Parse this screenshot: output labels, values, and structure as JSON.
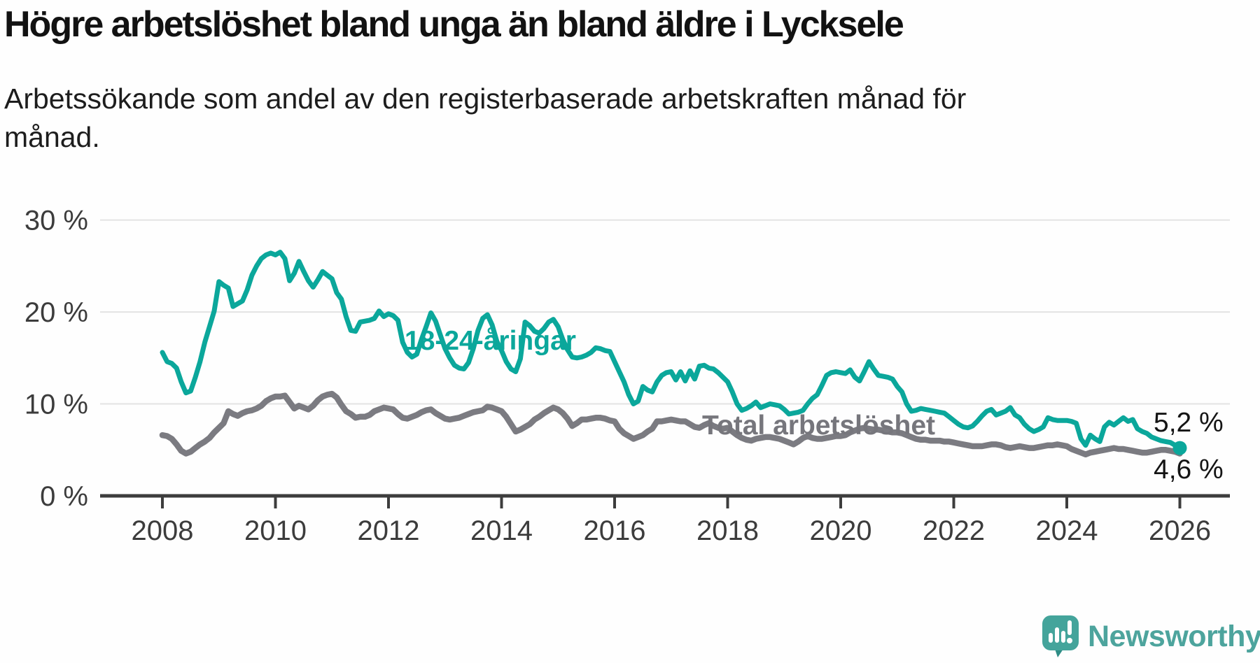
{
  "header": {
    "title": "Högre arbetslöshet bland unga än bland äldre i Lycksele",
    "subtitle": "Arbetssökande som andel av den registerbaserade arbetskraften månad för månad."
  },
  "chart_data": {
    "type": "line",
    "title": "Högre arbetslöshet bland unga än bland äldre i Lycksele",
    "xlabel": "",
    "ylabel": "Arbetssökande som andel av den registerbaserade arbetskraften",
    "x_unit": "monthly, January 2008 - January 2026",
    "grid": true,
    "legend_position": "inline-labels-on-lines",
    "x_axis": {
      "ticks": [
        2008,
        2010,
        2012,
        2014,
        2016,
        2018,
        2020,
        2022,
        2024,
        2026
      ]
    },
    "y_axis": {
      "min": 0,
      "max": 30,
      "ticks": [
        {
          "value": 30,
          "label": "30 %"
        },
        {
          "value": 20,
          "label": "20 %"
        },
        {
          "value": 10,
          "label": "10 %"
        },
        {
          "value": 0,
          "label": "0 %"
        }
      ]
    },
    "series": [
      {
        "name": "18-24-åringar",
        "color": "#0ba79b",
        "start": "2008-01",
        "values": [
          15.6,
          14.6,
          14.4,
          13.9,
          12.4,
          11.2,
          11.4,
          12.9,
          14.6,
          16.7,
          18.4,
          20.1,
          23.3,
          22.9,
          22.6,
          20.6,
          20.9,
          21.2,
          22.4,
          24.0,
          25.0,
          25.8,
          26.2,
          26.4,
          26.2,
          26.5,
          25.8,
          23.4,
          24.2,
          25.5,
          24.4,
          23.4,
          22.7,
          23.5,
          24.4,
          24.0,
          23.6,
          22.1,
          21.4,
          19.5,
          18.0,
          17.9,
          18.9,
          19.0,
          19.1,
          19.3,
          20.1,
          19.5,
          19.8,
          19.6,
          19.1,
          16.7,
          15.6,
          15.1,
          15.4,
          17.0,
          18.4,
          19.9,
          19.0,
          17.5,
          16.0,
          15.0,
          14.2,
          13.9,
          13.8,
          14.5,
          16.0,
          18.0,
          19.3,
          19.7,
          18.6,
          16.8,
          15.8,
          14.6,
          13.8,
          13.5,
          14.9,
          18.9,
          18.5,
          17.9,
          17.7,
          18.2,
          18.9,
          19.2,
          18.4,
          17.0,
          15.9,
          15.1,
          15.0,
          15.1,
          15.3,
          15.6,
          16.1,
          16.0,
          15.8,
          15.7,
          14.6,
          13.5,
          12.4,
          11.0,
          10.0,
          10.3,
          11.9,
          11.5,
          11.3,
          12.4,
          13.1,
          13.4,
          13.5,
          12.6,
          13.5,
          12.5,
          13.6,
          12.7,
          14.1,
          14.2,
          13.9,
          13.8,
          13.4,
          12.9,
          12.4,
          11.3,
          10.0,
          9.3,
          9.5,
          9.8,
          10.2,
          9.6,
          9.8,
          10.0,
          9.9,
          9.8,
          9.4,
          8.9,
          9.0,
          9.1,
          9.3,
          10.0,
          10.6,
          11.0,
          12.0,
          13.1,
          13.4,
          13.5,
          13.4,
          13.3,
          13.7,
          12.9,
          12.5,
          13.5,
          14.6,
          13.8,
          13.1,
          13.0,
          12.9,
          12.7,
          11.9,
          11.3,
          10.0,
          9.2,
          9.3,
          9.5,
          9.4,
          9.3,
          9.2,
          9.1,
          9.0,
          8.6,
          8.2,
          7.8,
          7.5,
          7.4,
          7.6,
          8.1,
          8.7,
          9.2,
          9.4,
          8.8,
          9.0,
          9.2,
          9.6,
          8.8,
          8.5,
          7.8,
          7.3,
          7.0,
          7.2,
          7.5,
          8.5,
          8.3,
          8.2,
          8.2,
          8.2,
          8.1,
          7.9,
          6.2,
          5.5,
          6.6,
          6.2,
          5.9,
          7.5,
          8.0,
          7.7,
          8.1,
          8.5,
          8.1,
          8.3,
          7.3,
          7.0,
          6.8,
          6.4,
          6.2,
          6.0,
          5.9,
          5.8,
          5.5,
          5.2
        ]
      },
      {
        "name": "Total arbetslöshet",
        "color": "#7b7b81",
        "start": "2008-01",
        "values": [
          6.6,
          6.5,
          6.2,
          5.6,
          4.9,
          4.6,
          4.8,
          5.2,
          5.6,
          5.9,
          6.3,
          6.9,
          7.4,
          7.9,
          9.2,
          8.9,
          8.7,
          9.0,
          9.2,
          9.3,
          9.5,
          9.8,
          10.3,
          10.6,
          10.8,
          10.8,
          10.9,
          10.2,
          9.5,
          9.8,
          9.6,
          9.4,
          9.8,
          10.4,
          10.8,
          11.0,
          11.1,
          10.7,
          9.9,
          9.2,
          8.9,
          8.5,
          8.6,
          8.6,
          8.8,
          9.2,
          9.4,
          9.6,
          9.5,
          9.4,
          8.9,
          8.5,
          8.4,
          8.6,
          8.8,
          9.1,
          9.3,
          9.4,
          9.0,
          8.7,
          8.4,
          8.3,
          8.4,
          8.5,
          8.7,
          8.9,
          9.1,
          9.2,
          9.3,
          9.7,
          9.6,
          9.4,
          9.2,
          8.6,
          7.8,
          7.0,
          7.2,
          7.5,
          7.8,
          8.3,
          8.6,
          9.0,
          9.3,
          9.6,
          9.4,
          9.0,
          8.4,
          7.6,
          7.9,
          8.3,
          8.3,
          8.4,
          8.5,
          8.5,
          8.4,
          8.2,
          8.1,
          7.3,
          6.8,
          6.5,
          6.2,
          6.4,
          6.6,
          7.0,
          7.3,
          8.1,
          8.1,
          8.2,
          8.3,
          8.2,
          8.1,
          8.1,
          7.8,
          7.5,
          7.4,
          7.7,
          7.9,
          7.6,
          7.4,
          7.3,
          7.4,
          7.0,
          6.6,
          6.3,
          6.1,
          6.0,
          6.2,
          6.3,
          6.4,
          6.4,
          6.3,
          6.2,
          6.0,
          5.8,
          5.6,
          5.9,
          6.3,
          6.5,
          6.3,
          6.2,
          6.2,
          6.3,
          6.4,
          6.5,
          6.5,
          6.6,
          6.9,
          7.1,
          7.3,
          7.4,
          7.3,
          7.2,
          7.2,
          7.1,
          7.0,
          6.9,
          6.9,
          6.8,
          6.6,
          6.4,
          6.2,
          6.1,
          6.1,
          6.0,
          6.0,
          6.0,
          5.9,
          5.9,
          5.8,
          5.7,
          5.6,
          5.5,
          5.4,
          5.4,
          5.4,
          5.5,
          5.6,
          5.6,
          5.5,
          5.3,
          5.2,
          5.3,
          5.4,
          5.3,
          5.2,
          5.2,
          5.3,
          5.4,
          5.5,
          5.5,
          5.6,
          5.5,
          5.4,
          5.1,
          4.9,
          4.7,
          4.5,
          4.7,
          4.8,
          4.9,
          5.0,
          5.1,
          5.2,
          5.1,
          5.1,
          5.0,
          4.9,
          4.8,
          4.7,
          4.7,
          4.8,
          4.9,
          5.0,
          5.0,
          4.9,
          4.8,
          4.6
        ]
      }
    ],
    "end_labels": [
      "5,2 %",
      "4,6 %"
    ]
  },
  "footer": {
    "brand": "Newsworthy"
  }
}
